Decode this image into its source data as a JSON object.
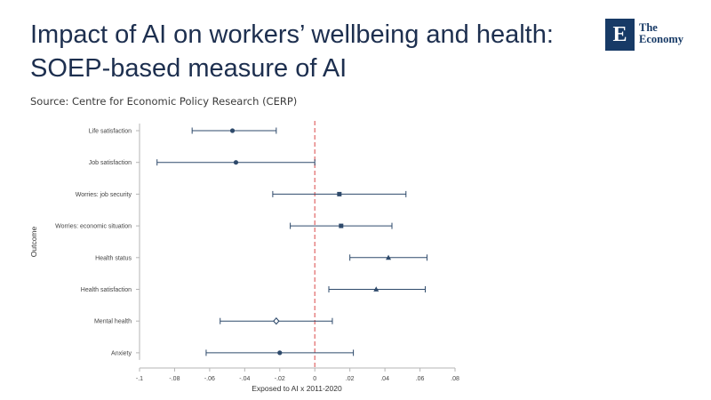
{
  "header": {
    "title_line1": "Impact of AI on workers’ wellbeing and health:",
    "title_line2": "SOEP-based measure of AI",
    "source": "Source: Centre for Economic Policy Research (CERP)"
  },
  "logo": {
    "mark": "E",
    "line1": "The",
    "line2": "Economy",
    "color": "#173a66"
  },
  "chart_data": {
    "type": "scatter",
    "subtype": "coefficient-plot-with-confidence-intervals",
    "xlabel": "Exposed to AI x 2011-2020",
    "ylabel": "Outcome",
    "xlim": [
      -0.1,
      0.08
    ],
    "x_ticks": [
      -0.1,
      -0.08,
      -0.06,
      -0.04,
      -0.02,
      0,
      0.02,
      0.04,
      0.06,
      0.08
    ],
    "x_tick_labels": [
      "-.1",
      "-.08",
      "-.06",
      "-.04",
      "-.02",
      "0",
      ".02",
      ".04",
      ".06",
      ".08"
    ],
    "reference_line": {
      "x": 0,
      "style": "dashed",
      "color": "#e06666"
    },
    "grid": false,
    "marker_color": "#2e4a6b",
    "series": [
      {
        "values": [
          {
            "label": "Life satisfaction",
            "estimate": -0.047,
            "ci_low": -0.07,
            "ci_high": -0.022,
            "marker": "circle"
          },
          {
            "label": "Job satisfaction",
            "estimate": -0.045,
            "ci_low": -0.09,
            "ci_high": 0.0,
            "marker": "circle"
          },
          {
            "label": "Worries: job security",
            "estimate": 0.014,
            "ci_low": -0.024,
            "ci_high": 0.052,
            "marker": "square"
          },
          {
            "label": "Worries: economic situation",
            "estimate": 0.015,
            "ci_low": -0.014,
            "ci_high": 0.044,
            "marker": "square"
          },
          {
            "label": "Health status",
            "estimate": 0.042,
            "ci_low": 0.02,
            "ci_high": 0.064,
            "marker": "triangle"
          },
          {
            "label": "Health satisfaction",
            "estimate": 0.035,
            "ci_low": 0.008,
            "ci_high": 0.063,
            "marker": "triangle"
          },
          {
            "label": "Mental health",
            "estimate": -0.022,
            "ci_low": -0.054,
            "ci_high": 0.01,
            "marker": "diamond"
          },
          {
            "label": "Anxiety",
            "estimate": -0.02,
            "ci_low": -0.062,
            "ci_high": 0.022,
            "marker": "circle"
          }
        ]
      }
    ]
  }
}
